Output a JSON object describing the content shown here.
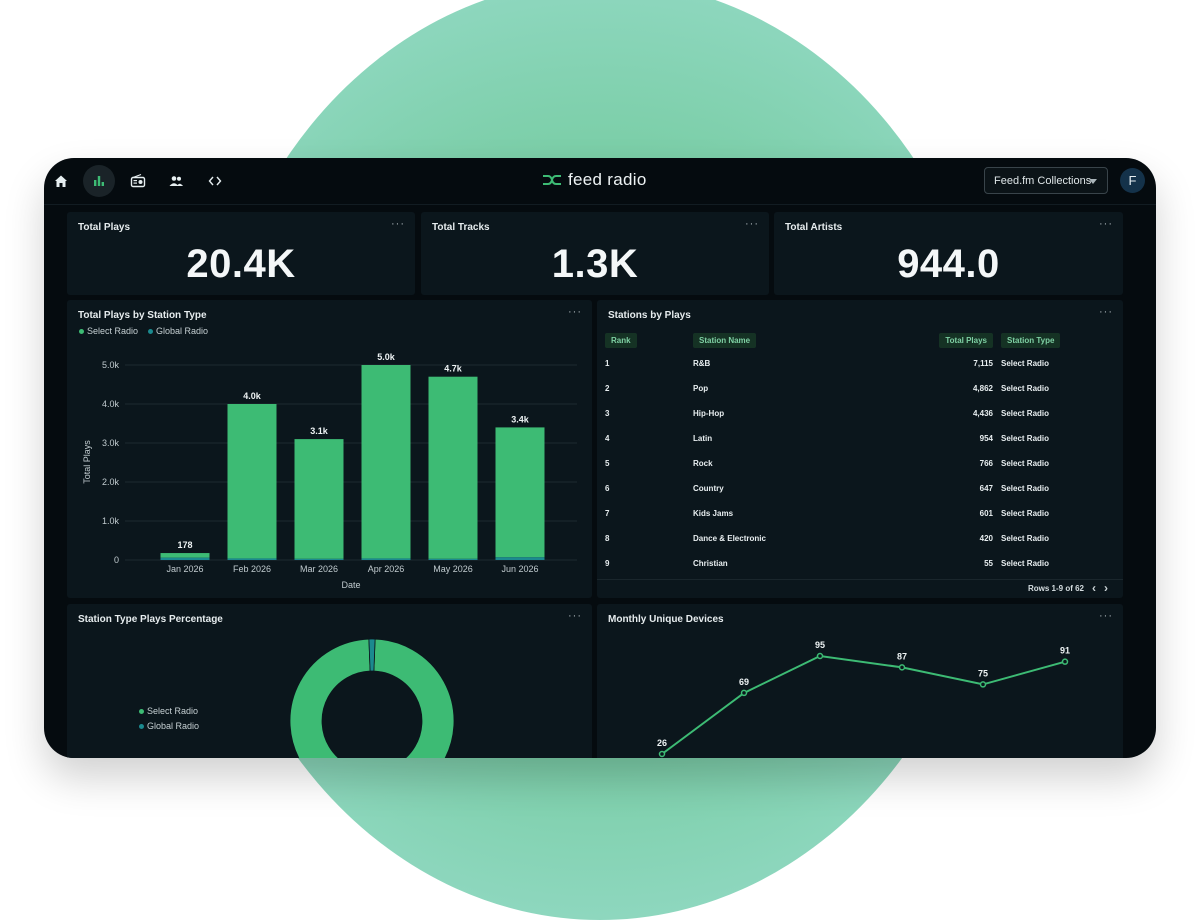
{
  "brand": {
    "name": "feed radio"
  },
  "nav": {
    "icons": [
      "home-icon",
      "bar-chart-icon",
      "radio-icon",
      "people-icon",
      "code-icon"
    ]
  },
  "collections_select": {
    "value": "Feed.fm Collections"
  },
  "user": {
    "initial": "F"
  },
  "kpis": [
    {
      "title": "Total Plays",
      "value": "20.4K"
    },
    {
      "title": "Total Tracks",
      "value": "1.3K"
    },
    {
      "title": "Total Artists",
      "value": "944.0"
    }
  ],
  "menu_glyph": "···",
  "plays_by_type": {
    "title": "Total Plays by Station Type",
    "legend": [
      "Select Radio",
      "Global Radio"
    ]
  },
  "stations_table": {
    "title": "Stations by Plays",
    "columns": [
      "Rank",
      "Station Name",
      "Total Plays",
      "Station Type"
    ],
    "rows": [
      [
        "1",
        "R&B",
        "7,115",
        "Select Radio"
      ],
      [
        "2",
        "Pop",
        "4,862",
        "Select Radio"
      ],
      [
        "3",
        "Hip-Hop",
        "4,436",
        "Select Radio"
      ],
      [
        "4",
        "Latin",
        "954",
        "Select Radio"
      ],
      [
        "5",
        "Rock",
        "766",
        "Select Radio"
      ],
      [
        "6",
        "Country",
        "647",
        "Select Radio"
      ],
      [
        "7",
        "Kids Jams",
        "601",
        "Select Radio"
      ],
      [
        "8",
        "Dance & Electronic",
        "420",
        "Select Radio"
      ],
      [
        "9",
        "Christian",
        "55",
        "Select Radio"
      ]
    ],
    "rows_info": "Rows 1-9 of 62"
  },
  "percentage_chart": {
    "title": "Station Type Plays Percentage",
    "legend": [
      "Select Radio",
      "Global Radio"
    ]
  },
  "devices_chart": {
    "title": "Monthly Unique Devices"
  },
  "colors": {
    "select_radio": "#3dbb74",
    "global_radio": "#1b8a8f",
    "background": "#050b0f"
  },
  "chart_data": [
    {
      "type": "bar",
      "title": "Total Plays by Station Type",
      "xlabel": "Date",
      "ylabel": "Total Plays",
      "categories": [
        "Jan 2026",
        "Feb 2026",
        "Mar 2026",
        "Apr 2026",
        "May 2026",
        "Jun 2026"
      ],
      "series": [
        {
          "name": "Select Radio",
          "values": [
            120,
            3960,
            3070,
            4960,
            4670,
            3330
          ]
        },
        {
          "name": "Global Radio",
          "values": [
            58,
            40,
            30,
            40,
            30,
            70
          ]
        }
      ],
      "data_labels": [
        "178",
        "4.0k",
        "3.1k",
        "5.0k",
        "4.7k",
        "3.4k"
      ],
      "yticks": [
        "0",
        "1.0k",
        "2.0k",
        "3.0k",
        "4.0k",
        "5.0k"
      ],
      "ylim": [
        0,
        5000
      ],
      "legend": "top-left",
      "grid": true
    },
    {
      "type": "pie",
      "title": "Station Type Plays Percentage",
      "categories": [
        "Select Radio",
        "Global Radio"
      ],
      "values": [
        98.8,
        1.2
      ],
      "legend": "left"
    },
    {
      "type": "line",
      "title": "Monthly Unique Devices",
      "values": [
        26,
        69,
        95,
        87,
        75,
        91
      ],
      "labels": [
        "26",
        "69",
        "95",
        "87",
        "75",
        "91"
      ]
    }
  ]
}
